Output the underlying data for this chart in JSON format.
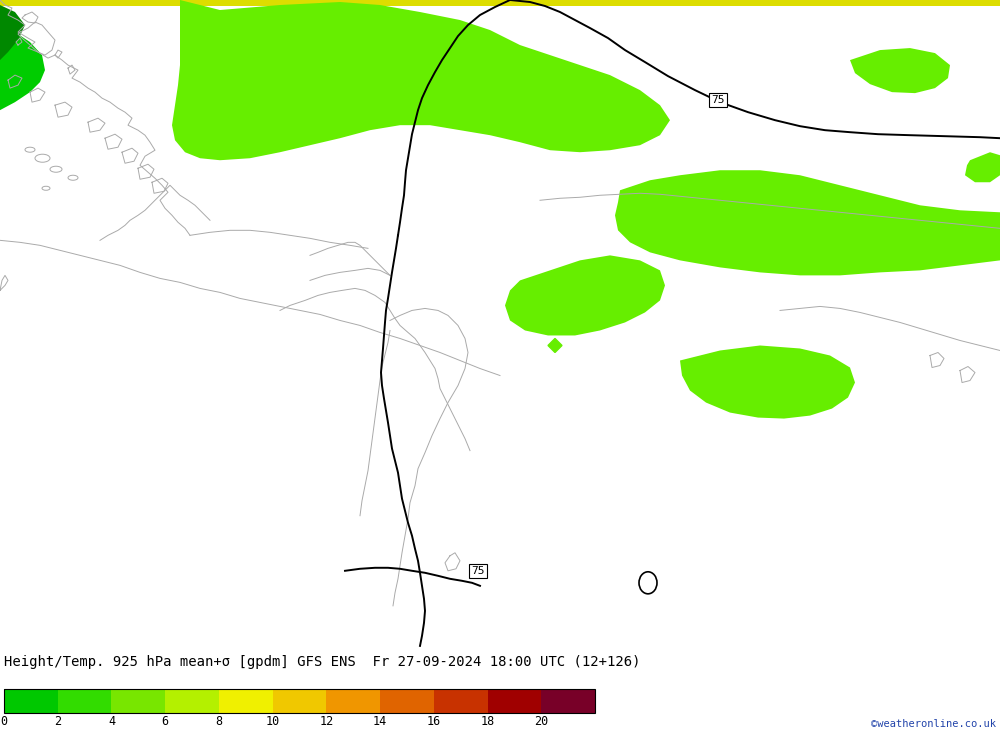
{
  "title": "Height/Temp. 925 hPa mean+σ [gpdm] GFS ENS  Fr 27-09-2024 18:00 UTC (12+126)",
  "credit": "©weatheronline.co.uk",
  "colorbar_values": [
    0,
    2,
    4,
    6,
    8,
    10,
    12,
    14,
    16,
    18,
    20
  ],
  "colorbar_colors": [
    "#00c800",
    "#32dc00",
    "#78e600",
    "#b4f000",
    "#f0f000",
    "#f0c800",
    "#f09600",
    "#e06400",
    "#c83200",
    "#a00000",
    "#780028"
  ],
  "bg_color_bright": "#00ee00",
  "bg_color_light": "#66ee00",
  "top_yellow": "#dddd00",
  "border_color": "#aaaaaa",
  "contour_color": "#000000",
  "fig_width": 10.0,
  "fig_height": 7.33,
  "dpi": 100
}
